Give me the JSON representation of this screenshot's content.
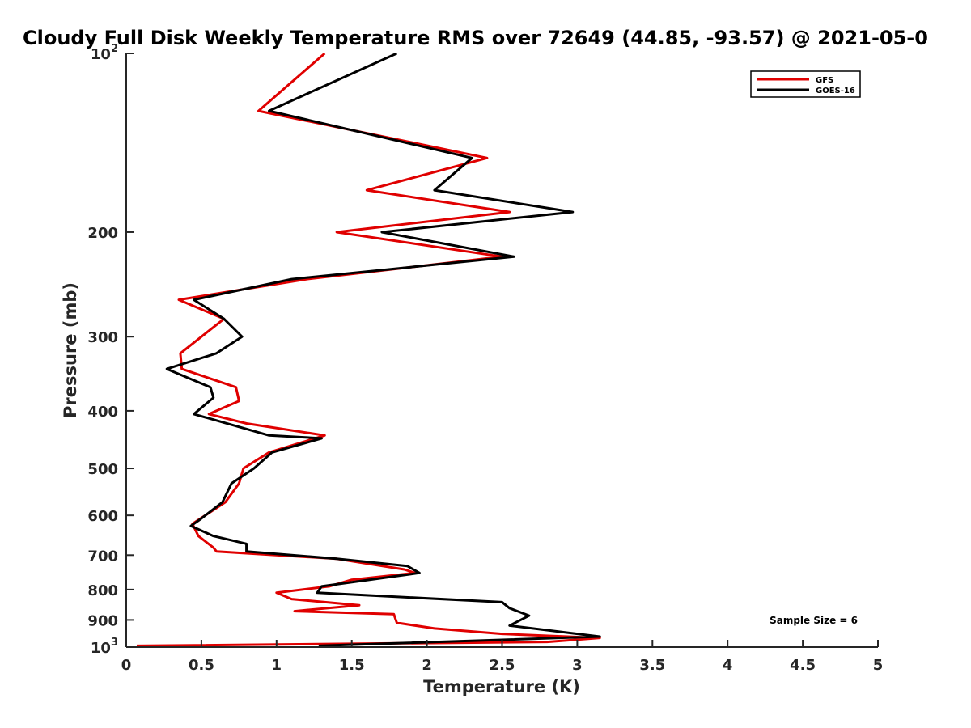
{
  "chart_data": {
    "type": "line",
    "title": "Cloudy Full Disk Weekly Temperature RMS over 72649 (44.85, -93.57) @ 2021-05-0",
    "xlabel": "Temperature (K)",
    "ylabel": "Pressure (mb)",
    "xlim": [
      0,
      5
    ],
    "ylim": [
      100,
      1000
    ],
    "yscale": "log",
    "y_reversed": true,
    "x_ticks": [
      "0",
      "0.5",
      "1",
      "1.5",
      "2",
      "2.5",
      "3",
      "3.5",
      "4",
      "4.5",
      "5"
    ],
    "y_ticks": [
      {
        "value": 100,
        "base": "10",
        "exp": "2"
      },
      {
        "value": 200,
        "label": "200"
      },
      {
        "value": 300,
        "label": "300"
      },
      {
        "value": 400,
        "label": "400"
      },
      {
        "value": 500,
        "label": "500"
      },
      {
        "value": 600,
        "label": "600"
      },
      {
        "value": 700,
        "label": "700"
      },
      {
        "value": 800,
        "label": "800"
      },
      {
        "value": 900,
        "label": "900"
      },
      {
        "value": 1000,
        "base": "10",
        "exp": "3"
      }
    ],
    "legend_position": "top-right",
    "grid": false,
    "annotation": "Sample Size = 6",
    "series": [
      {
        "name": "GFS",
        "color": "#e00000",
        "points": [
          [
            1.32,
            100
          ],
          [
            0.88,
            125
          ],
          [
            2.4,
            150
          ],
          [
            1.6,
            170
          ],
          [
            2.55,
            185
          ],
          [
            1.4,
            200
          ],
          [
            2.5,
            220
          ],
          [
            1.2,
            240
          ],
          [
            0.35,
            260
          ],
          [
            0.65,
            280
          ],
          [
            0.36,
            320
          ],
          [
            0.37,
            340
          ],
          [
            0.73,
            365
          ],
          [
            0.75,
            385
          ],
          [
            0.55,
            405
          ],
          [
            0.8,
            420
          ],
          [
            1.32,
            440
          ],
          [
            0.95,
            470
          ],
          [
            0.78,
            500
          ],
          [
            0.75,
            530
          ],
          [
            0.66,
            570
          ],
          [
            0.44,
            620
          ],
          [
            0.48,
            650
          ],
          [
            0.58,
            680
          ],
          [
            0.6,
            690
          ],
          [
            1.4,
            710
          ],
          [
            1.85,
            740
          ],
          [
            1.92,
            750
          ],
          [
            1.5,
            770
          ],
          [
            1.35,
            790
          ],
          [
            1.0,
            810
          ],
          [
            1.1,
            830
          ],
          [
            1.55,
            850
          ],
          [
            1.12,
            870
          ],
          [
            1.78,
            880
          ],
          [
            1.8,
            910
          ],
          [
            2.05,
            930
          ],
          [
            2.5,
            950
          ],
          [
            3.15,
            965
          ],
          [
            2.8,
            980
          ],
          [
            0.07,
            995
          ]
        ]
      },
      {
        "name": "GOES-16",
        "color": "#000000",
        "points": [
          [
            1.8,
            100
          ],
          [
            0.95,
            125
          ],
          [
            2.3,
            150
          ],
          [
            2.05,
            170
          ],
          [
            2.97,
            185
          ],
          [
            1.7,
            200
          ],
          [
            2.58,
            220
          ],
          [
            1.1,
            240
          ],
          [
            0.45,
            260
          ],
          [
            0.65,
            280
          ],
          [
            0.77,
            300
          ],
          [
            0.6,
            320
          ],
          [
            0.27,
            340
          ],
          [
            0.56,
            365
          ],
          [
            0.58,
            380
          ],
          [
            0.45,
            405
          ],
          [
            0.95,
            440
          ],
          [
            1.3,
            445
          ],
          [
            0.97,
            470
          ],
          [
            0.85,
            500
          ],
          [
            0.7,
            530
          ],
          [
            0.64,
            570
          ],
          [
            0.49,
            610
          ],
          [
            0.43,
            625
          ],
          [
            0.58,
            650
          ],
          [
            0.8,
            670
          ],
          [
            0.8,
            690
          ],
          [
            1.4,
            710
          ],
          [
            1.87,
            730
          ],
          [
            1.95,
            750
          ],
          [
            1.3,
            790
          ],
          [
            1.27,
            810
          ],
          [
            2.5,
            840
          ],
          [
            2.55,
            860
          ],
          [
            2.68,
            885
          ],
          [
            2.55,
            920
          ],
          [
            3.15,
            960
          ],
          [
            1.28,
            995
          ]
        ]
      }
    ]
  }
}
